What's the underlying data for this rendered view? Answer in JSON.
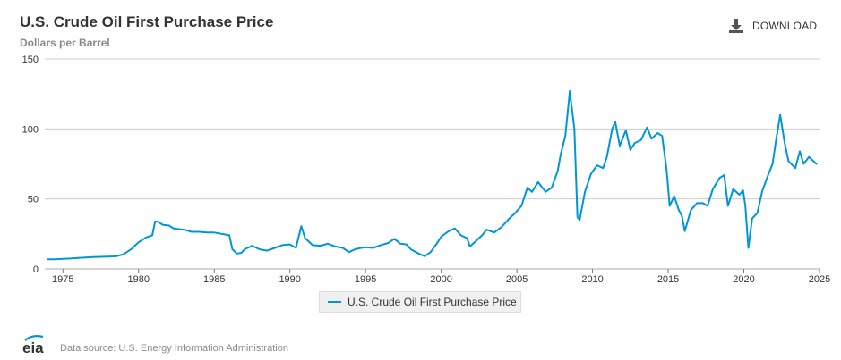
{
  "header": {
    "title": "U.S. Crude Oil First Purchase Price",
    "subtitle": "Dollars per Barrel",
    "download_label": "DOWNLOAD"
  },
  "footer": {
    "logo_text": "eia",
    "source": "Data source: U.S. Energy Information Administration"
  },
  "colors": {
    "series": "#0096d6",
    "grid": "#cccccc",
    "axis": "#777777"
  },
  "chart_data": {
    "type": "line",
    "title": "U.S. Crude Oil First Purchase Price",
    "ylabel": "Dollars per Barrel",
    "xlim": [
      1973.8,
      2025
    ],
    "ylim": [
      0,
      150
    ],
    "yticks": [
      0,
      50,
      100,
      150
    ],
    "xticks": [
      1975,
      1980,
      1985,
      1990,
      1995,
      2000,
      2005,
      2010,
      2015,
      2020,
      2025
    ],
    "grid": "horizontal",
    "legend": "bottom-center",
    "series": [
      {
        "name": "U.S. Crude Oil First Purchase Price",
        "color": "#0096d6",
        "points": [
          [
            1974.0,
            6.8
          ],
          [
            1974.5,
            6.9
          ],
          [
            1975.0,
            7.2
          ],
          [
            1975.5,
            7.4
          ],
          [
            1976.0,
            7.8
          ],
          [
            1976.5,
            8.2
          ],
          [
            1977.0,
            8.4
          ],
          [
            1977.5,
            8.6
          ],
          [
            1978.0,
            8.8
          ],
          [
            1978.5,
            9.0
          ],
          [
            1979.0,
            10.5
          ],
          [
            1979.5,
            14.0
          ],
          [
            1980.0,
            19.0
          ],
          [
            1980.5,
            22.5
          ],
          [
            1980.9,
            24.0
          ],
          [
            1981.1,
            34.0
          ],
          [
            1981.3,
            33.5
          ],
          [
            1981.6,
            31.5
          ],
          [
            1982.0,
            31.0
          ],
          [
            1982.3,
            29.0
          ],
          [
            1982.6,
            28.5
          ],
          [
            1983.0,
            28.0
          ],
          [
            1983.5,
            26.5
          ],
          [
            1984.0,
            26.5
          ],
          [
            1984.5,
            26.0
          ],
          [
            1985.0,
            26.0
          ],
          [
            1985.5,
            25.0
          ],
          [
            1986.0,
            24.0
          ],
          [
            1986.2,
            14.0
          ],
          [
            1986.5,
            11.0
          ],
          [
            1986.8,
            11.5
          ],
          [
            1987.0,
            14.0
          ],
          [
            1987.5,
            16.5
          ],
          [
            1988.0,
            14.0
          ],
          [
            1988.5,
            13.0
          ],
          [
            1989.0,
            15.0
          ],
          [
            1989.5,
            17.0
          ],
          [
            1990.0,
            17.5
          ],
          [
            1990.4,
            15.0
          ],
          [
            1990.75,
            30.5
          ],
          [
            1991.0,
            22.0
          ],
          [
            1991.5,
            17.0
          ],
          [
            1992.0,
            16.5
          ],
          [
            1992.5,
            18.0
          ],
          [
            1993.0,
            16.0
          ],
          [
            1993.5,
            15.0
          ],
          [
            1993.9,
            12.0
          ],
          [
            1994.3,
            14.0
          ],
          [
            1994.7,
            15.0
          ],
          [
            1995.0,
            15.5
          ],
          [
            1995.5,
            15.0
          ],
          [
            1996.0,
            17.0
          ],
          [
            1996.5,
            18.5
          ],
          [
            1996.9,
            21.5
          ],
          [
            1997.3,
            18.0
          ],
          [
            1997.7,
            17.5
          ],
          [
            1998.0,
            14.0
          ],
          [
            1998.5,
            11.0
          ],
          [
            1998.9,
            9.0
          ],
          [
            1999.3,
            12.0
          ],
          [
            1999.7,
            18.0
          ],
          [
            2000.0,
            23.0
          ],
          [
            2000.5,
            27.0
          ],
          [
            2000.9,
            29.0
          ],
          [
            2001.3,
            24.0
          ],
          [
            2001.7,
            22.0
          ],
          [
            2001.9,
            16.0
          ],
          [
            2002.3,
            20.0
          ],
          [
            2002.7,
            24.0
          ],
          [
            2003.0,
            28.0
          ],
          [
            2003.5,
            26.0
          ],
          [
            2004.0,
            30.0
          ],
          [
            2004.5,
            36.0
          ],
          [
            2004.9,
            40.0
          ],
          [
            2005.3,
            45.0
          ],
          [
            2005.7,
            58.0
          ],
          [
            2006.0,
            55.0
          ],
          [
            2006.4,
            62.0
          ],
          [
            2006.9,
            55.0
          ],
          [
            2007.3,
            58.0
          ],
          [
            2007.7,
            70.0
          ],
          [
            2007.9,
            82.0
          ],
          [
            2008.2,
            95.0
          ],
          [
            2008.5,
            127.0
          ],
          [
            2008.8,
            100.0
          ],
          [
            2009.0,
            37.0
          ],
          [
            2009.15,
            35.0
          ],
          [
            2009.5,
            55.0
          ],
          [
            2009.9,
            68.0
          ],
          [
            2010.3,
            74.0
          ],
          [
            2010.7,
            72.0
          ],
          [
            2010.95,
            80.0
          ],
          [
            2011.3,
            100.0
          ],
          [
            2011.5,
            105.0
          ],
          [
            2011.8,
            88.0
          ],
          [
            2012.2,
            99.0
          ],
          [
            2012.5,
            85.0
          ],
          [
            2012.8,
            90.0
          ],
          [
            2013.2,
            92.0
          ],
          [
            2013.6,
            101.0
          ],
          [
            2013.9,
            93.0
          ],
          [
            2014.3,
            97.0
          ],
          [
            2014.6,
            95.0
          ],
          [
            2014.9,
            70.0
          ],
          [
            2015.1,
            45.0
          ],
          [
            2015.4,
            52.0
          ],
          [
            2015.7,
            42.0
          ],
          [
            2015.9,
            38.0
          ],
          [
            2016.1,
            27.0
          ],
          [
            2016.5,
            42.0
          ],
          [
            2016.9,
            47.0
          ],
          [
            2017.3,
            47.0
          ],
          [
            2017.6,
            45.0
          ],
          [
            2017.95,
            57.0
          ],
          [
            2018.4,
            65.0
          ],
          [
            2018.7,
            67.0
          ],
          [
            2018.95,
            45.0
          ],
          [
            2019.3,
            57.0
          ],
          [
            2019.7,
            53.0
          ],
          [
            2019.95,
            56.0
          ],
          [
            2020.1,
            45.0
          ],
          [
            2020.3,
            15.0
          ],
          [
            2020.55,
            36.0
          ],
          [
            2020.9,
            40.0
          ],
          [
            2021.2,
            55.0
          ],
          [
            2021.6,
            67.0
          ],
          [
            2021.9,
            75.0
          ],
          [
            2022.1,
            90.0
          ],
          [
            2022.4,
            110.0
          ],
          [
            2022.7,
            90.0
          ],
          [
            2022.95,
            77.0
          ],
          [
            2023.4,
            72.0
          ],
          [
            2023.7,
            84.0
          ],
          [
            2023.95,
            75.0
          ],
          [
            2024.3,
            80.0
          ],
          [
            2024.6,
            77.0
          ],
          [
            2024.8,
            75.0
          ]
        ]
      }
    ]
  }
}
